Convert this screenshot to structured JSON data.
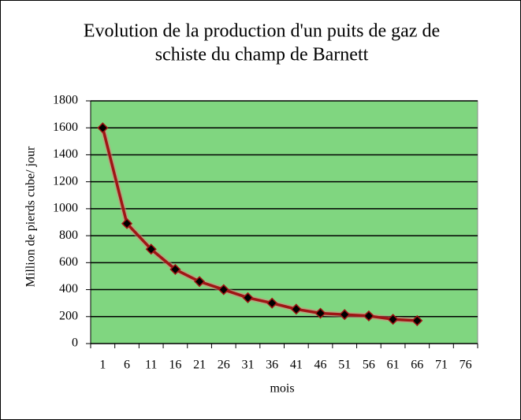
{
  "chart_data": {
    "type": "line",
    "title": [
      "Evolution de la production d'un puits de gaz de",
      "schiste du champ de Barnett"
    ],
    "x_label": "mois",
    "y_label": "Million de pierds cube/ jour",
    "categories": [
      "1",
      "6",
      "11",
      "16",
      "21",
      "26",
      "31",
      "36",
      "41",
      "46",
      "51",
      "56",
      "61",
      "66",
      "71",
      "76"
    ],
    "series": [
      {
        "color": "#a01515",
        "values": [
          1600,
          890,
          700,
          550,
          460,
          400,
          340,
          300,
          255,
          225,
          215,
          205,
          180,
          170,
          null,
          null
        ]
      }
    ],
    "ylim": [
      0,
      1800
    ],
    "yticks": [
      0,
      200,
      400,
      600,
      800,
      1000,
      1200,
      1400,
      1600,
      1800
    ],
    "grid": true,
    "plot_background": "#80d680"
  }
}
